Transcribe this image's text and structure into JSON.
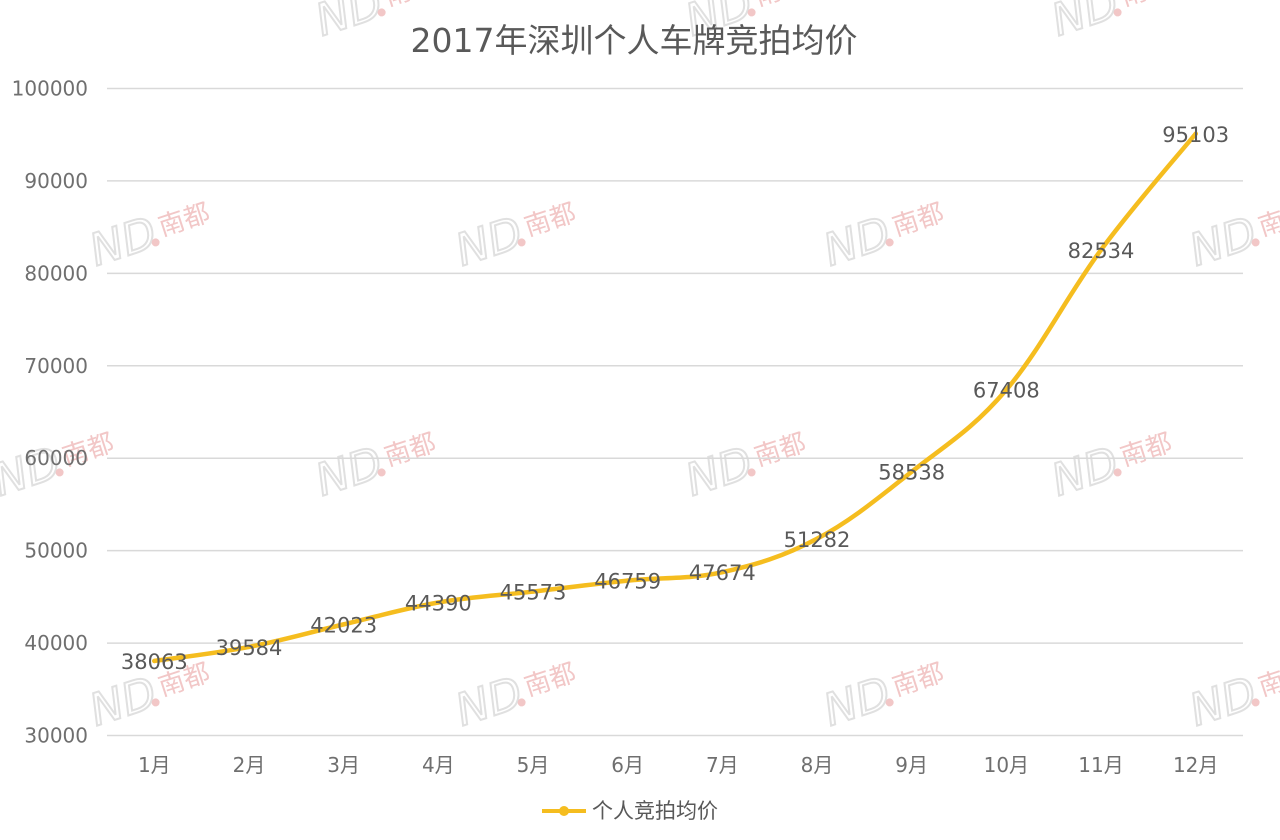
{
  "chart_data": {
    "type": "line",
    "title": "2017年深圳个人车牌竞拍均价",
    "categories": [
      "1月",
      "2月",
      "3月",
      "4月",
      "5月",
      "6月",
      "7月",
      "8月",
      "9月",
      "10月",
      "11月",
      "12月"
    ],
    "series": [
      {
        "name": "个人竞拍均价",
        "values": [
          38063,
          39584,
          42023,
          44390,
          45573,
          46759,
          47674,
          51282,
          58538,
          67408,
          82534,
          95103
        ]
      }
    ],
    "ylim": [
      30000,
      100000
    ],
    "yticks": [
      30000,
      40000,
      50000,
      60000,
      70000,
      80000,
      90000,
      100000
    ],
    "grid": true,
    "legend": "bottom",
    "data_labels": true
  },
  "colors": {
    "line": "#f5bd1f",
    "grid": "#d9d9d9",
    "text": "#595959"
  },
  "watermark": {
    "latin": "ND",
    "chinese": "南都"
  }
}
